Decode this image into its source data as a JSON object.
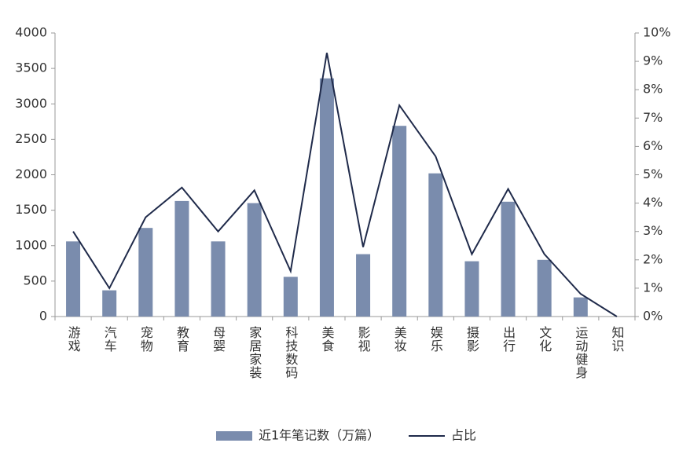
{
  "chart_data": {
    "type": "bar_line",
    "categories": [
      "游戏",
      "汽车",
      "宠物",
      "教育",
      "母婴",
      "家居家装",
      "科技数码",
      "美食",
      "影视",
      "美妆",
      "娱乐",
      "摄影",
      "出行",
      "文化",
      "运动健身",
      "知识"
    ],
    "series": [
      {
        "name": "近1年笔记数（万篇）",
        "type": "bar",
        "color": "#7a8cad",
        "values": [
          1060,
          370,
          1250,
          1630,
          1060,
          1600,
          560,
          3360,
          880,
          2690,
          2020,
          780,
          1620,
          800,
          270,
          0
        ]
      },
      {
        "name": "占比",
        "type": "line",
        "axis": "y2",
        "color": "#1f2a4a",
        "values": [
          3.0,
          1.0,
          3.5,
          4.55,
          3.0,
          4.45,
          1.6,
          9.3,
          2.45,
          7.45,
          5.65,
          2.2,
          4.5,
          2.2,
          0.8,
          0
        ]
      }
    ],
    "ylim": [
      0,
      4000
    ],
    "yticks": [
      0,
      500,
      1000,
      1500,
      2000,
      2500,
      3000,
      3500,
      4000
    ],
    "y2lim": [
      0,
      10
    ],
    "y2ticks": [
      {
        "value": 0,
        "label": "0%"
      },
      {
        "value": 1,
        "label": "1%"
      },
      {
        "value": 2,
        "label": "2%"
      },
      {
        "value": 3,
        "label": "3%"
      },
      {
        "value": 4,
        "label": "4%"
      },
      {
        "value": 5,
        "label": "5%"
      },
      {
        "value": 6,
        "label": "6%"
      },
      {
        "value": 7,
        "label": "7%"
      },
      {
        "value": 8,
        "label": "8%"
      },
      {
        "value": 9,
        "label": "9%"
      },
      {
        "value": 10,
        "label": "10%"
      }
    ],
    "legend": "bottom",
    "grid": false
  }
}
